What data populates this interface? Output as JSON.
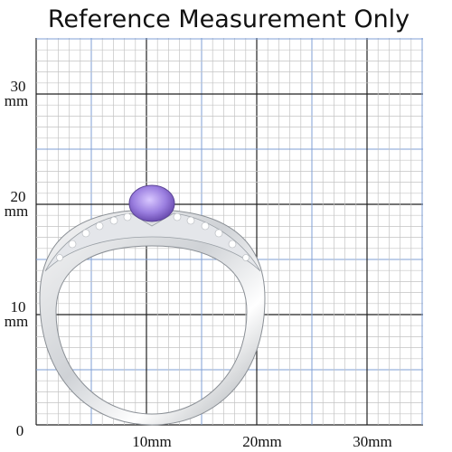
{
  "header": {
    "title": "Reference Measurement Only"
  },
  "y_labels": [
    {
      "number": "30",
      "unit": "mm"
    },
    {
      "number": "20",
      "unit": "mm"
    },
    {
      "number": "10",
      "unit": "mm"
    },
    {
      "number": "0"
    }
  ],
  "x_labels": [
    "10mm",
    "20mm",
    "30mm"
  ]
}
